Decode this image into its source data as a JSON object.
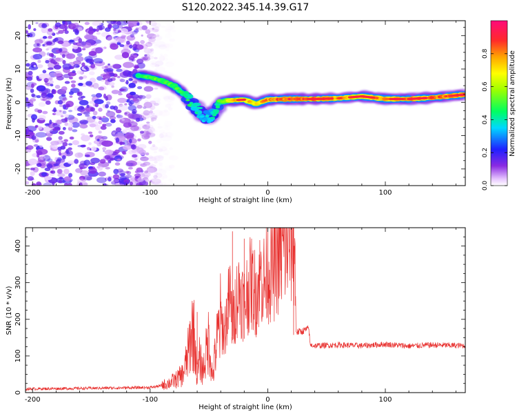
{
  "title": "S120.2022.345.14.39.G17",
  "chart_data": [
    {
      "type": "heatmap",
      "xlabel": "Height of straight line (km)",
      "ylabel": "Frequency (Hz)",
      "xlim": [
        -206,
        168
      ],
      "ylim": [
        -25,
        24.5
      ],
      "xticks": [
        -200,
        -100,
        0,
        100
      ],
      "yticks": [
        -20,
        -10,
        0,
        10,
        20
      ],
      "colorbar": {
        "label": "Normalized spectral amplitude",
        "range": [
          0.0,
          1.0
        ],
        "ticks": [
          0.0,
          0.2,
          0.4,
          0.6,
          0.8
        ],
        "tick_labels": [
          "0.0",
          "0.2",
          "0.4",
          "0.6",
          "0.8"
        ],
        "colormap": "gist_rainbow_reversed"
      },
      "ridge": {
        "x": [
          -110,
          -100,
          -90,
          -80,
          -70,
          -60,
          -55,
          -50,
          -45,
          -40,
          -35,
          -30,
          -20,
          -10,
          0,
          20,
          40,
          60,
          80,
          100,
          120,
          140,
          167
        ],
        "y": [
          8,
          7.5,
          6.5,
          5,
          2,
          -2,
          -4,
          -4.5,
          -3,
          0,
          0.5,
          0.6,
          0.8,
          -0.5,
          0.8,
          1.0,
          1.0,
          1.2,
          1.8,
          1.0,
          1.0,
          1.4,
          2.3
        ],
        "amplitude": [
          0.45,
          0.5,
          0.5,
          0.5,
          0.45,
          0.4,
          0.35,
          0.35,
          0.4,
          0.5,
          0.6,
          0.75,
          0.75,
          0.7,
          0.8,
          0.85,
          0.85,
          0.8,
          0.75,
          0.8,
          0.8,
          0.8,
          0.85
        ]
      },
      "noise_region": {
        "x_range": [
          -206,
          -92
        ],
        "amplitude_range": [
          0.02,
          0.2
        ]
      }
    },
    {
      "type": "line",
      "xlabel": "Height of straight line (km)",
      "ylabel": "SNR (10 * v/v)",
      "xlim": [
        -206,
        168
      ],
      "ylim": [
        0,
        450
      ],
      "xticks": [
        -200,
        -100,
        0,
        100
      ],
      "yticks": [
        0,
        100,
        200,
        300,
        400
      ],
      "color": "#e8312f",
      "series": [
        {
          "x": [
            -206,
            -150,
            -100,
            -92,
            -85,
            -78,
            -72,
            -68,
            -64,
            -62,
            -60,
            -58,
            -55,
            -50,
            -47,
            -44,
            -40,
            -37,
            -34,
            -32,
            -30,
            -27,
            -24,
            -20,
            -17,
            -14,
            -10,
            -6,
            -2,
            0,
            4,
            8,
            12,
            16,
            19,
            21,
            23,
            24,
            25,
            30,
            35,
            36,
            40,
            60,
            80,
            100,
            120,
            140,
            168
          ],
          "y": [
            10,
            12,
            14,
            18,
            25,
            35,
            50,
            100,
            180,
            140,
            40,
            90,
            60,
            150,
            40,
            120,
            200,
            160,
            230,
            260,
            180,
            250,
            280,
            240,
            280,
            300,
            270,
            320,
            300,
            340,
            330,
            370,
            380,
            400,
            410,
            420,
            390,
            170,
            165,
            168,
            175,
            130,
            128,
            130,
            128,
            132,
            127,
            130,
            128
          ],
          "spikes": [
            {
              "x": -60,
              "y": 220
            },
            {
              "x": -30,
              "y": 440
            },
            {
              "x": -20,
              "y": 420
            },
            {
              "x": 22,
              "y": 450
            }
          ]
        }
      ]
    }
  ]
}
